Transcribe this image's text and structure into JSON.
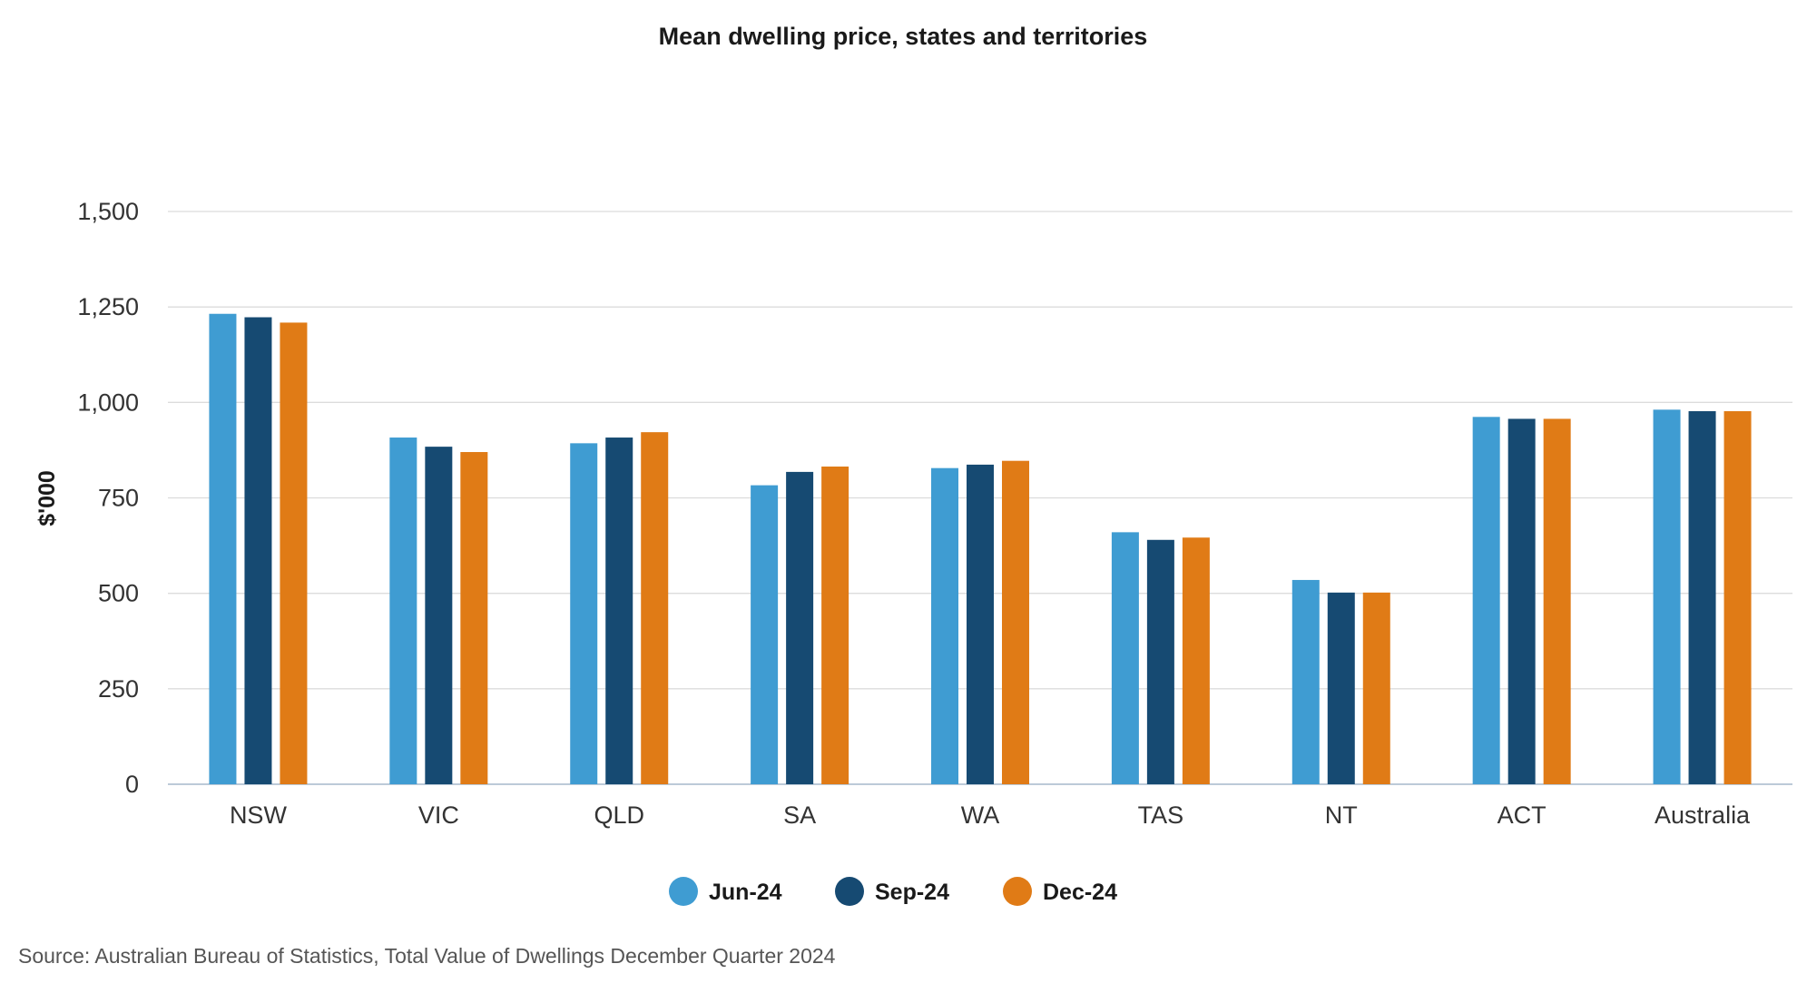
{
  "chart_data": {
    "type": "bar",
    "title": "Mean dwelling price, states and territories",
    "xlabel": "",
    "ylabel": "$'000",
    "ylim": [
      0,
      1500
    ],
    "yticks": [
      0,
      250,
      500,
      750,
      1000,
      1250,
      1500
    ],
    "ytick_labels": [
      "0",
      "250",
      "500",
      "750",
      "1,000",
      "1,250",
      "1,500"
    ],
    "grid": true,
    "legend_position": "bottom-center",
    "categories": [
      "NSW",
      "VIC",
      "QLD",
      "SA",
      "WA",
      "TAS",
      "NT",
      "ACT",
      "Australia"
    ],
    "series": [
      {
        "name": "Jun-24",
        "color": "#3f9cd2",
        "values": [
          1232,
          908,
          893,
          783,
          828,
          660,
          535,
          962,
          981
        ]
      },
      {
        "name": "Sep-24",
        "color": "#164a72",
        "values": [
          1223,
          884,
          908,
          818,
          837,
          640,
          502,
          957,
          977
        ]
      },
      {
        "name": "Dec-24",
        "color": "#e07b16",
        "values": [
          1209,
          870,
          922,
          832,
          847,
          646,
          502,
          957,
          977
        ]
      }
    ]
  },
  "source_text": "Source: Australian Bureau of Statistics, Total Value of Dwellings December Quarter 2024"
}
